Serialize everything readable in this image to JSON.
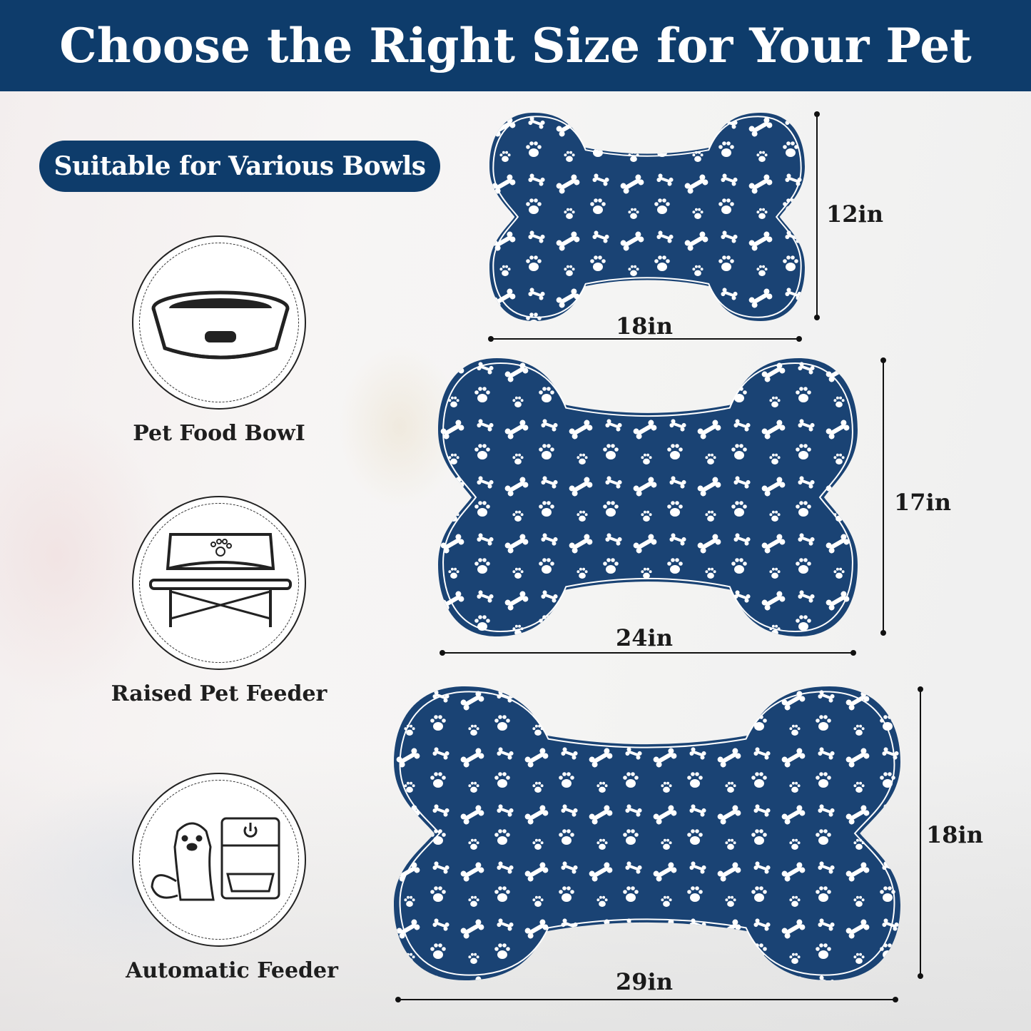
{
  "header": {
    "title": "Choose the Right Size for Your Pet"
  },
  "badge": {
    "label": "Suitable for Various Bowls"
  },
  "bowl_types": [
    {
      "label": "Pet Food BowI",
      "icon": "pet-food-bowl-icon"
    },
    {
      "label": "Raised Pet Feeder",
      "icon": "raised-feeder-icon"
    },
    {
      "label": "Automatic Feeder",
      "icon": "automatic-feeder-icon"
    }
  ],
  "mats": [
    {
      "size": "small",
      "width_label": "18in",
      "height_label": "12in"
    },
    {
      "size": "medium",
      "width_label": "24in",
      "height_label": "17in"
    },
    {
      "size": "large",
      "width_label": "29in",
      "height_label": "18in"
    }
  ],
  "colors": {
    "brand_navy": "#0e3c6b",
    "mat_navy": "#1a4374",
    "pattern": "#ffffff"
  }
}
